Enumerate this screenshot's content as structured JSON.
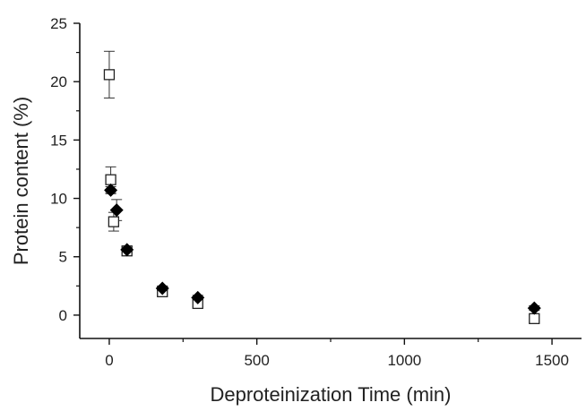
{
  "chart_data": {
    "type": "scatter",
    "title": "",
    "xlabel": "Deproteinization Time (min)",
    "ylabel": "Protein content (%)",
    "xlim": [
      -100,
      1600
    ],
    "ylim": [
      -2,
      25
    ],
    "xticks": [
      0,
      500,
      1000,
      1500
    ],
    "yticks": [
      0,
      5,
      10,
      15,
      20,
      25
    ],
    "grid": false,
    "legend": "none",
    "series": [
      {
        "marker": "open-square",
        "color": "#222222",
        "points": [
          {
            "x": 0,
            "y": 20.6,
            "err": 2.0
          },
          {
            "x": 5,
            "y": 11.6,
            "err": 1.1
          },
          {
            "x": 15,
            "y": 8.0,
            "err": 0.8
          },
          {
            "x": 60,
            "y": 5.5,
            "err": 0.4
          },
          {
            "x": 180,
            "y": 2.0,
            "err": 0.3
          },
          {
            "x": 300,
            "y": 1.0,
            "err": 0.3
          },
          {
            "x": 1440,
            "y": -0.3,
            "err": 0.3
          }
        ]
      },
      {
        "marker": "filled-diamond",
        "color": "#000000",
        "points": [
          {
            "x": 5,
            "y": 10.7,
            "err": 0.3
          },
          {
            "x": 25,
            "y": 9.0,
            "err": 0.9
          },
          {
            "x": 60,
            "y": 5.6,
            "err": 0.3
          },
          {
            "x": 180,
            "y": 2.3,
            "err": 0.2
          },
          {
            "x": 300,
            "y": 1.5,
            "err": 0.2
          },
          {
            "x": 1440,
            "y": 0.6,
            "err": 0.2
          }
        ]
      }
    ]
  }
}
